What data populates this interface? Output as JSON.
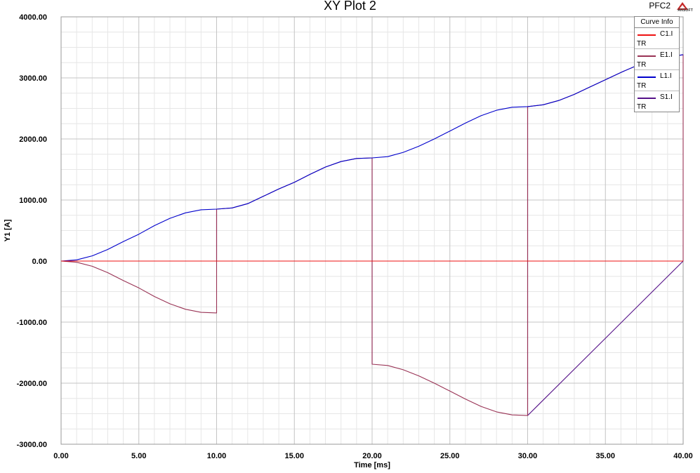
{
  "header": {
    "title": "XY Plot 2",
    "project": "PFC2",
    "logo_text": "ANSOFT"
  },
  "legend": {
    "title": "Curve Info",
    "items": [
      {
        "name": "C1.I",
        "sub": "TR",
        "color": "#ee1111"
      },
      {
        "name": "E1.I",
        "sub": "TR",
        "color": "#993355"
      },
      {
        "name": "L1.I",
        "sub": "TR",
        "color": "#0000cc"
      },
      {
        "name": "S1.I",
        "sub": "TR",
        "color": "#551188"
      }
    ]
  },
  "chart_data": {
    "type": "line",
    "title": "XY Plot 2",
    "xlabel": "Time [ms]",
    "ylabel": "Y1 [A]",
    "xlim": [
      0,
      40
    ],
    "ylim": [
      -3000,
      4000
    ],
    "xticks": [
      "0.00",
      "5.00",
      "10.00",
      "15.00",
      "20.00",
      "25.00",
      "30.00",
      "35.00",
      "40.00"
    ],
    "yticks": [
      "4000.00",
      "3000.00",
      "2000.00",
      "1000.00",
      "0.00",
      "-1000.00",
      "-2000.00",
      "-3000.00"
    ],
    "grid": true,
    "legend_position": "top-right",
    "series": [
      {
        "name": "C1.I",
        "x": [
          0,
          40
        ],
        "y": [
          0,
          0
        ]
      },
      {
        "name": "L1.I",
        "x": [
          0,
          1,
          2,
          3,
          4,
          5,
          6,
          7,
          8,
          9,
          10,
          11,
          12,
          13,
          14,
          15,
          16,
          17,
          18,
          19,
          20,
          21,
          22,
          23,
          24,
          25,
          26,
          27,
          28,
          29,
          30,
          31,
          32,
          33,
          34,
          35,
          36,
          37,
          38,
          39,
          40
        ],
        "y": [
          0,
          20,
          85,
          190,
          320,
          440,
          580,
          700,
          790,
          840,
          850,
          870,
          940,
          1060,
          1180,
          1290,
          1420,
          1540,
          1630,
          1680,
          1690,
          1710,
          1780,
          1880,
          2000,
          2130,
          2260,
          2380,
          2470,
          2520,
          2530,
          2560,
          2630,
          2730,
          2850,
          2970,
          3090,
          3200,
          3290,
          3340,
          3380
        ]
      },
      {
        "name": "E1.I",
        "x": [
          0,
          1,
          2,
          3,
          4,
          5,
          6,
          7,
          8,
          9,
          10,
          10,
          11,
          12,
          13,
          14,
          15,
          16,
          17,
          18,
          19,
          20,
          20,
          21,
          22,
          23,
          24,
          25,
          26,
          27,
          28,
          29,
          30,
          30,
          31,
          32,
          33,
          34,
          35,
          36,
          37,
          38,
          39,
          40,
          40
        ],
        "y": [
          0,
          -20,
          -85,
          -190,
          -320,
          -440,
          -580,
          -700,
          -790,
          -840,
          -850,
          850,
          870,
          940,
          1060,
          1180,
          1290,
          1420,
          1540,
          1630,
          1680,
          1690,
          -1690,
          -1710,
          -1780,
          -1880,
          -2000,
          -2130,
          -2260,
          -2380,
          -2470,
          -2520,
          -2530,
          2530,
          2560,
          2630,
          2730,
          2850,
          2970,
          3090,
          3200,
          3290,
          3340,
          3380,
          0
        ]
      },
      {
        "name": "S1.I",
        "x": [
          0,
          10,
          10,
          10,
          20,
          20,
          20,
          20,
          30,
          30,
          30,
          40
        ],
        "y": [
          0,
          0,
          850,
          0,
          0,
          1690,
          -1690,
          0,
          0,
          2530,
          -2530,
          0
        ]
      }
    ]
  }
}
